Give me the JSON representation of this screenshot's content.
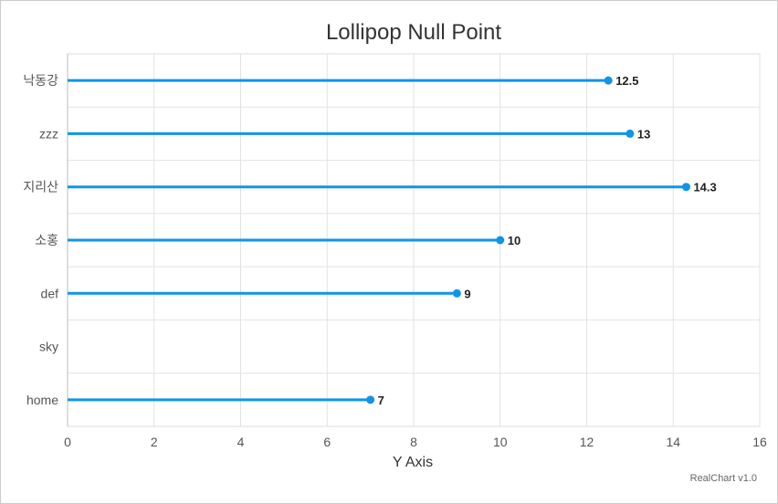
{
  "chart_data": {
    "type": "lollipop",
    "orientation": "horizontal",
    "title": "Lollipop Null Point",
    "xlabel": "Y Axis",
    "categories": [
      "낙동강",
      "zzz",
      "지리산",
      "소홍",
      "def",
      "sky",
      "home"
    ],
    "values": [
      12.5,
      13,
      14.3,
      10,
      9,
      null,
      7
    ],
    "axis_range": [
      0,
      16
    ],
    "ticks": [
      0,
      2,
      4,
      6,
      8,
      10,
      12,
      14,
      16
    ],
    "grid": true,
    "color": "#0f95e8"
  },
  "credit": "RealChart v1.0"
}
